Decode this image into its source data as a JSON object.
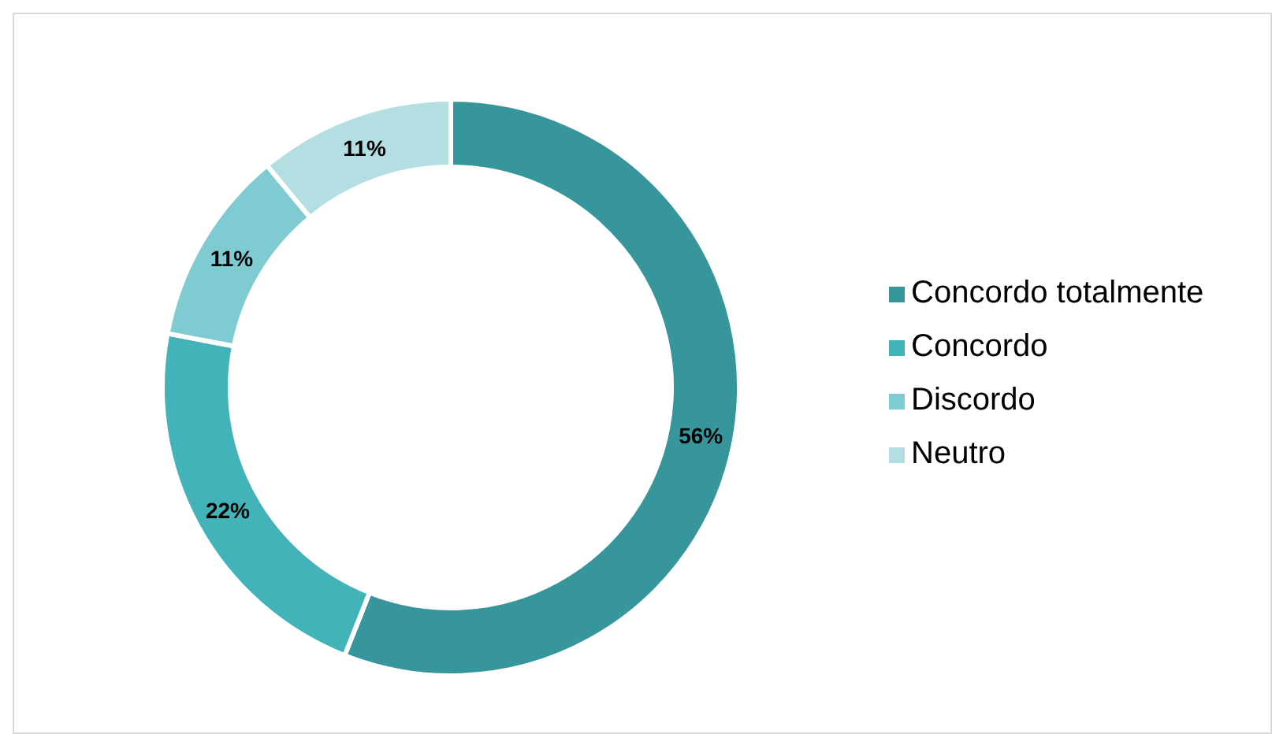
{
  "chart_data": {
    "type": "donut",
    "categories": [
      "Concordo totalmente",
      "Concordo",
      "Discordo",
      "Neutro"
    ],
    "values": [
      56,
      22,
      11,
      11
    ],
    "colors": [
      "#37969b",
      "#42b3b9",
      "#7ecbd1",
      "#b3dfe2"
    ],
    "value_labels": [
      "56%",
      "22%",
      "11%",
      "11%"
    ],
    "legend": "right"
  }
}
